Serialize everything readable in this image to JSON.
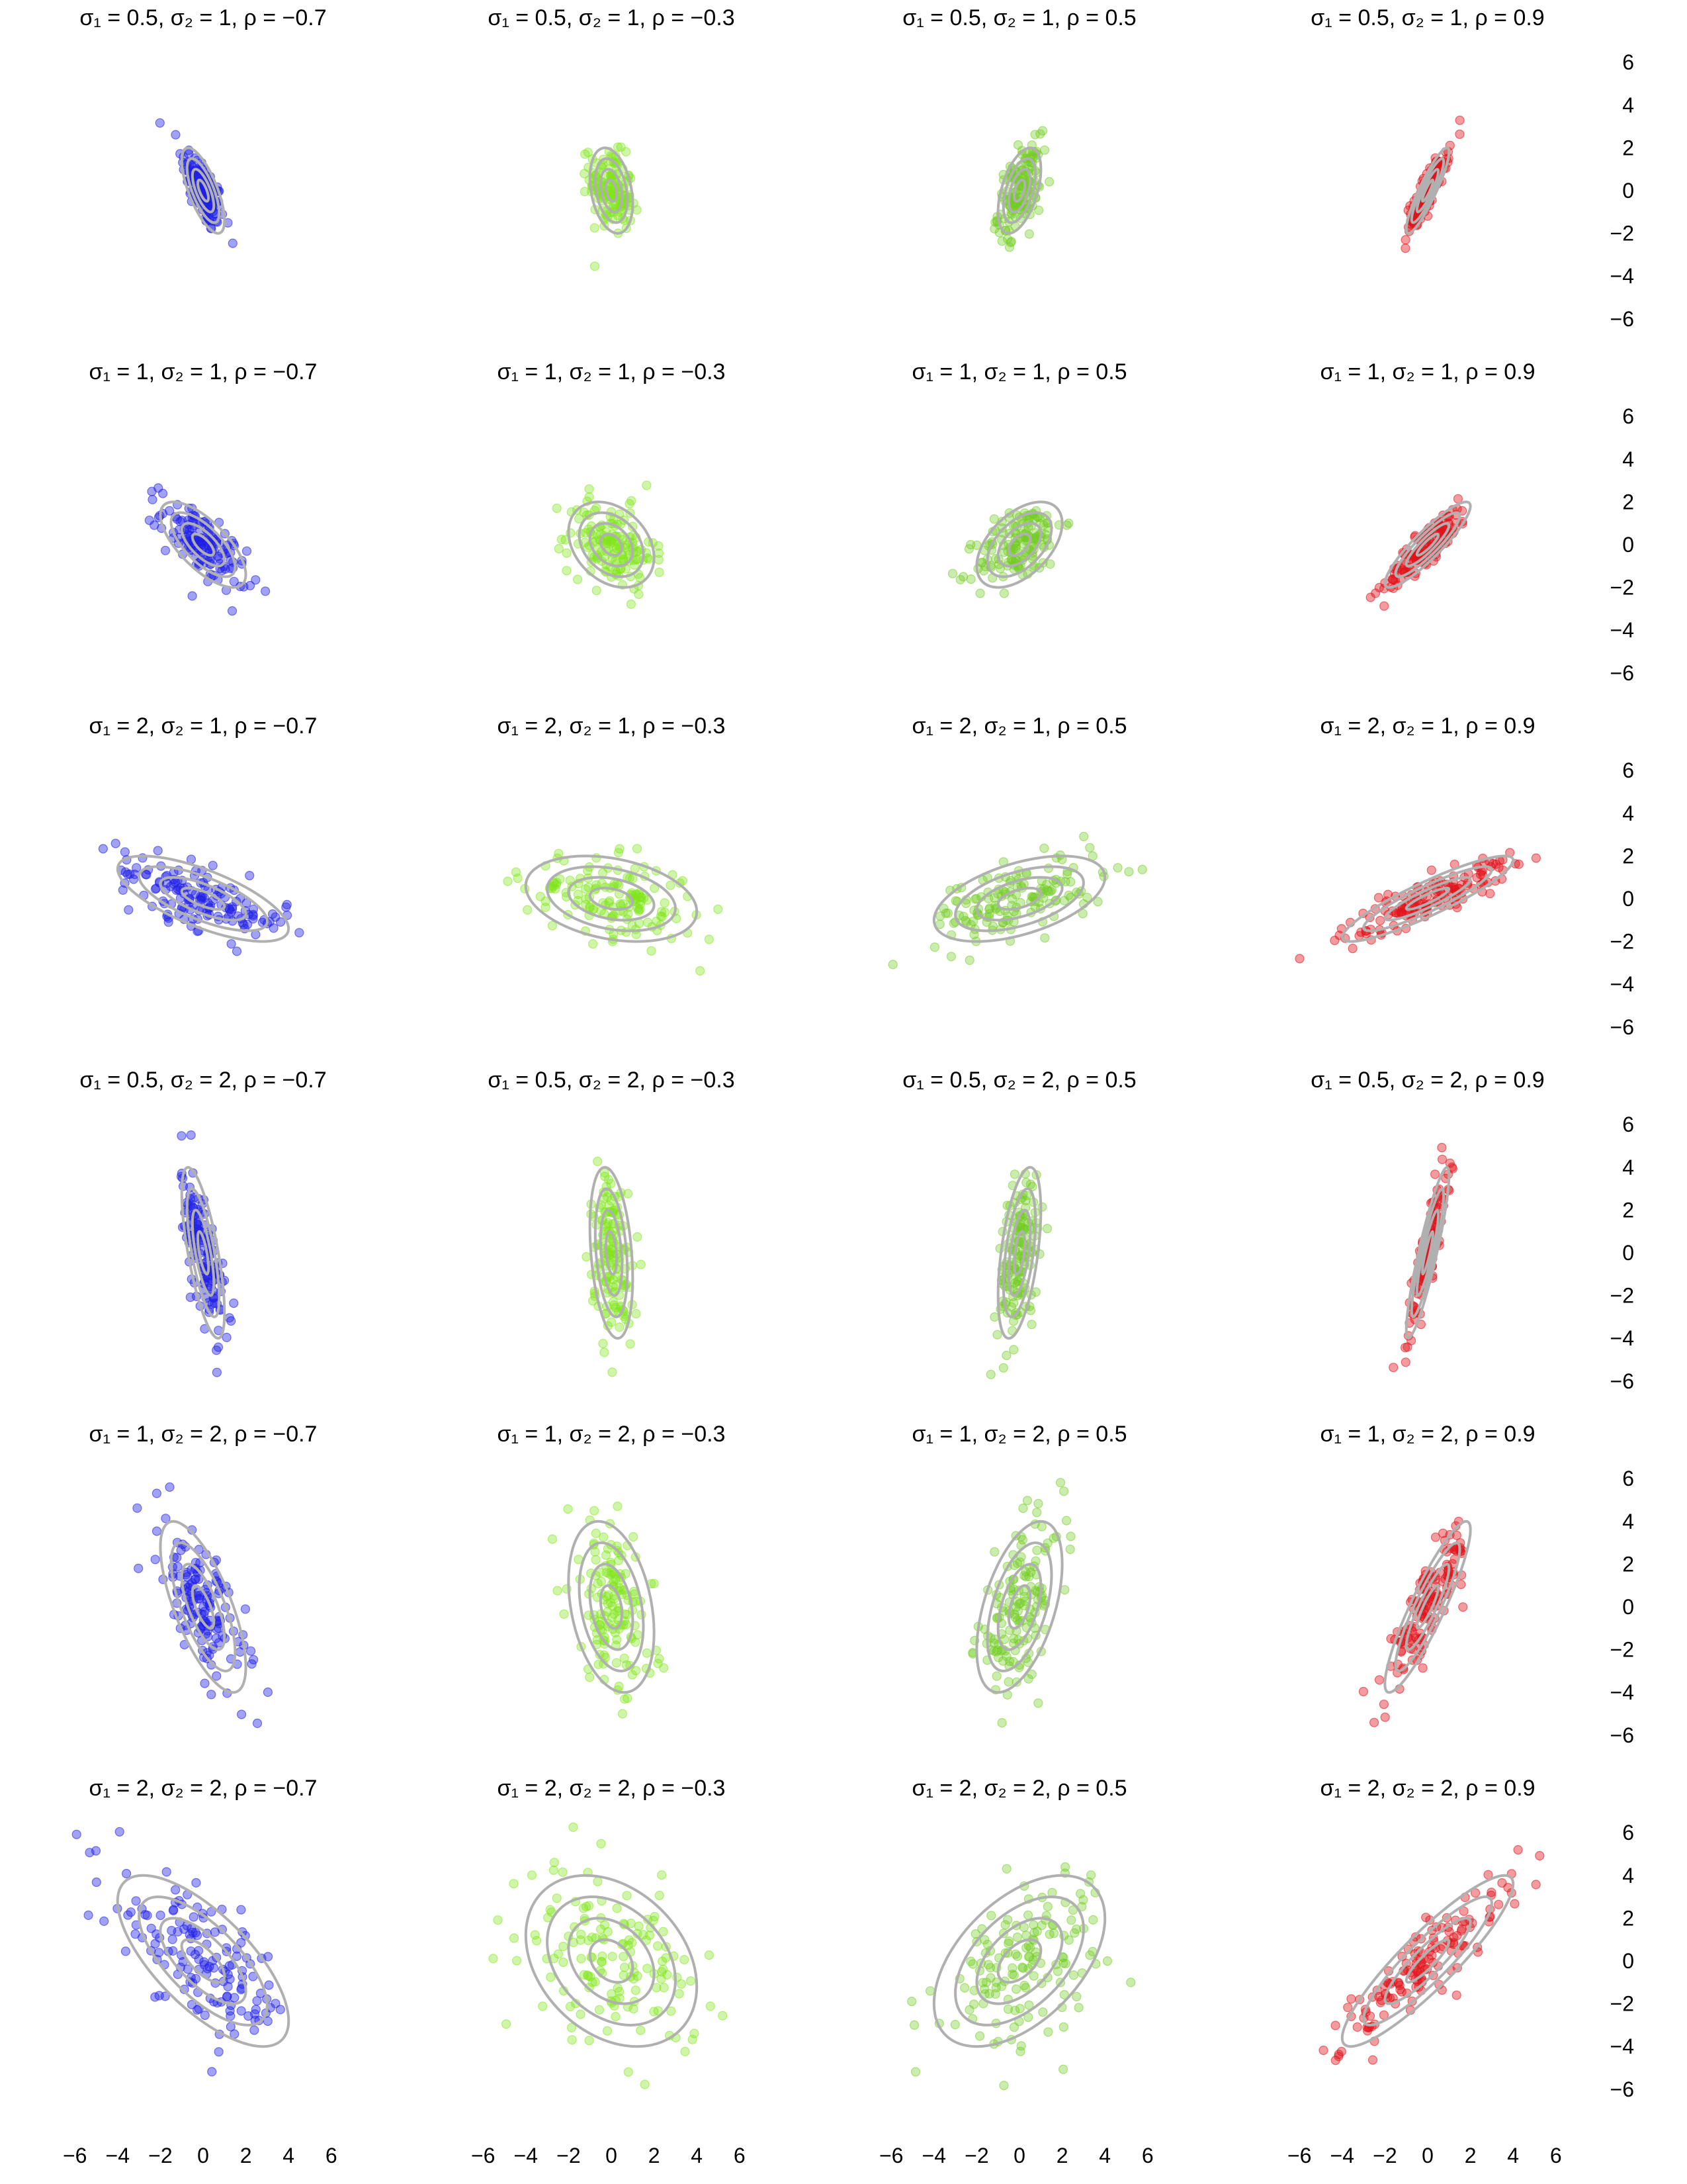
{
  "chart_data": {
    "type": "scatter",
    "title": "",
    "description_kind": "bivariate normal samples with density contours",
    "grid": false,
    "axis_range": [
      -6,
      6
    ],
    "x_ticks": [
      "−6",
      "−4",
      "−2",
      "0",
      "2",
      "4",
      "6"
    ],
    "y_ticks": [
      "6",
      "4",
      "2",
      "0",
      "−2",
      "−4",
      "−6"
    ],
    "colors": {
      "rho_neg_0_7": "#1f1fe6",
      "rho_neg_0_3": "#80e61a",
      "rho_0_5": "#73cc26",
      "rho_0_9": "#e0141a",
      "contour": "#b0b0b0"
    },
    "contour_levels_sigma": [
      0.5,
      1.0,
      1.5,
      2.0
    ],
    "points_per_panel": 150,
    "rows": [
      {
        "sigma1": 0.5,
        "sigma2": 1
      },
      {
        "sigma1": 1,
        "sigma2": 1
      },
      {
        "sigma1": 2,
        "sigma2": 1
      },
      {
        "sigma1": 0.5,
        "sigma2": 2
      },
      {
        "sigma1": 1,
        "sigma2": 2
      },
      {
        "sigma1": 2,
        "sigma2": 2
      }
    ],
    "rhos": [
      -0.7,
      -0.3,
      0.5,
      0.9
    ],
    "panel_titles": [
      [
        "σ₁ = 0.5, σ₂ = 1, ρ = −0.7",
        "σ₁ = 0.5, σ₂ = 1, ρ = −0.3",
        "σ₁ = 0.5, σ₂ = 1, ρ = 0.5",
        "σ₁ = 0.5, σ₂ = 1, ρ = 0.9"
      ],
      [
        "σ₁ = 1, σ₂ = 1, ρ = −0.7",
        "σ₁ = 1, σ₂ = 1, ρ = −0.3",
        "σ₁ = 1, σ₂ = 1, ρ = 0.5",
        "σ₁ = 1, σ₂ = 1, ρ = 0.9"
      ],
      [
        "σ₁ = 2, σ₂ = 1, ρ = −0.7",
        "σ₁ = 2, σ₂ = 1, ρ = −0.3",
        "σ₁ = 2, σ₂ = 1, ρ = 0.5",
        "σ₁ = 2, σ₂ = 1, ρ = 0.9"
      ],
      [
        "σ₁ = 0.5, σ₂ = 2, ρ = −0.7",
        "σ₁ = 0.5, σ₂ = 2, ρ = −0.3",
        "σ₁ = 0.5, σ₂ = 2, ρ = 0.5",
        "σ₁ = 0.5, σ₂ = 2, ρ = 0.9"
      ],
      [
        "σ₁ = 1, σ₂ = 2, ρ = −0.7",
        "σ₁ = 1, σ₂ = 2, ρ = −0.3",
        "σ₁ = 1, σ₂ = 2, ρ = 0.5",
        "σ₁ = 1, σ₂ = 2, ρ = 0.9"
      ],
      [
        "σ₁ = 2, σ₂ = 2, ρ = −0.7",
        "σ₁ = 2, σ₂ = 2, ρ = −0.3",
        "σ₁ = 2, σ₂ = 2, ρ = 0.5",
        "σ₁ = 2, σ₂ = 2, ρ = 0.9"
      ]
    ]
  }
}
